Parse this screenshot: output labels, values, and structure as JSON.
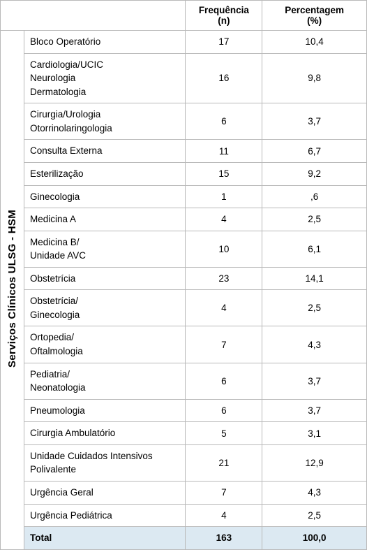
{
  "table": {
    "headers": {
      "blank": "",
      "freq_line1": "Frequência",
      "freq_line2": "(n)",
      "pct_line1": "Percentagem",
      "pct_line2": "(%)"
    },
    "side_label": "Serviços Clínicos ULSG - HSM",
    "rows": [
      {
        "service": "Bloco Operatório",
        "freq": "17",
        "pct": "10,4"
      },
      {
        "service": "Cardiologia/UCIC\nNeurologia\nDermatologia",
        "freq": "16",
        "pct": "9,8"
      },
      {
        "service": "Cirurgia/Urologia\nOtorrinolaringologia",
        "freq": "6",
        "pct": "3,7"
      },
      {
        "service": "Consulta Externa",
        "freq": "11",
        "pct": "6,7"
      },
      {
        "service": "Esterilização",
        "freq": "15",
        "pct": "9,2"
      },
      {
        "service": "Ginecologia",
        "freq": "1",
        "pct": ",6"
      },
      {
        "service": "Medicina A",
        "freq": "4",
        "pct": "2,5"
      },
      {
        "service": "Medicina B/\nUnidade AVC",
        "freq": "10",
        "pct": "6,1"
      },
      {
        "service": "Obstetrícia",
        "freq": "23",
        "pct": "14,1"
      },
      {
        "service": "Obstetrícia/\nGinecologia",
        "freq": "4",
        "pct": "2,5"
      },
      {
        "service": "Ortopedia/\nOftalmologia",
        "freq": "7",
        "pct": "4,3"
      },
      {
        "service": "Pediatria/\nNeonatologia",
        "freq": "6",
        "pct": "3,7"
      },
      {
        "service": "Pneumologia",
        "freq": "6",
        "pct": "3,7"
      },
      {
        "service": "Cirurgia Ambulatório",
        "freq": "5",
        "pct": "3,1"
      },
      {
        "service": "Unidade Cuidados Intensivos\nPolivalente",
        "freq": "21",
        "pct": "12,9"
      },
      {
        "service": "Urgência Geral",
        "freq": "7",
        "pct": "4,3"
      },
      {
        "service": "Urgência Pediátrica",
        "freq": "4",
        "pct": "2,5"
      }
    ],
    "total": {
      "label": "Total",
      "freq": "163",
      "pct": "100,0"
    },
    "colors": {
      "border": "#b9b9b9",
      "background": "#ffffff",
      "total_row_bg": "#dce9f2",
      "text": "#000000"
    }
  }
}
